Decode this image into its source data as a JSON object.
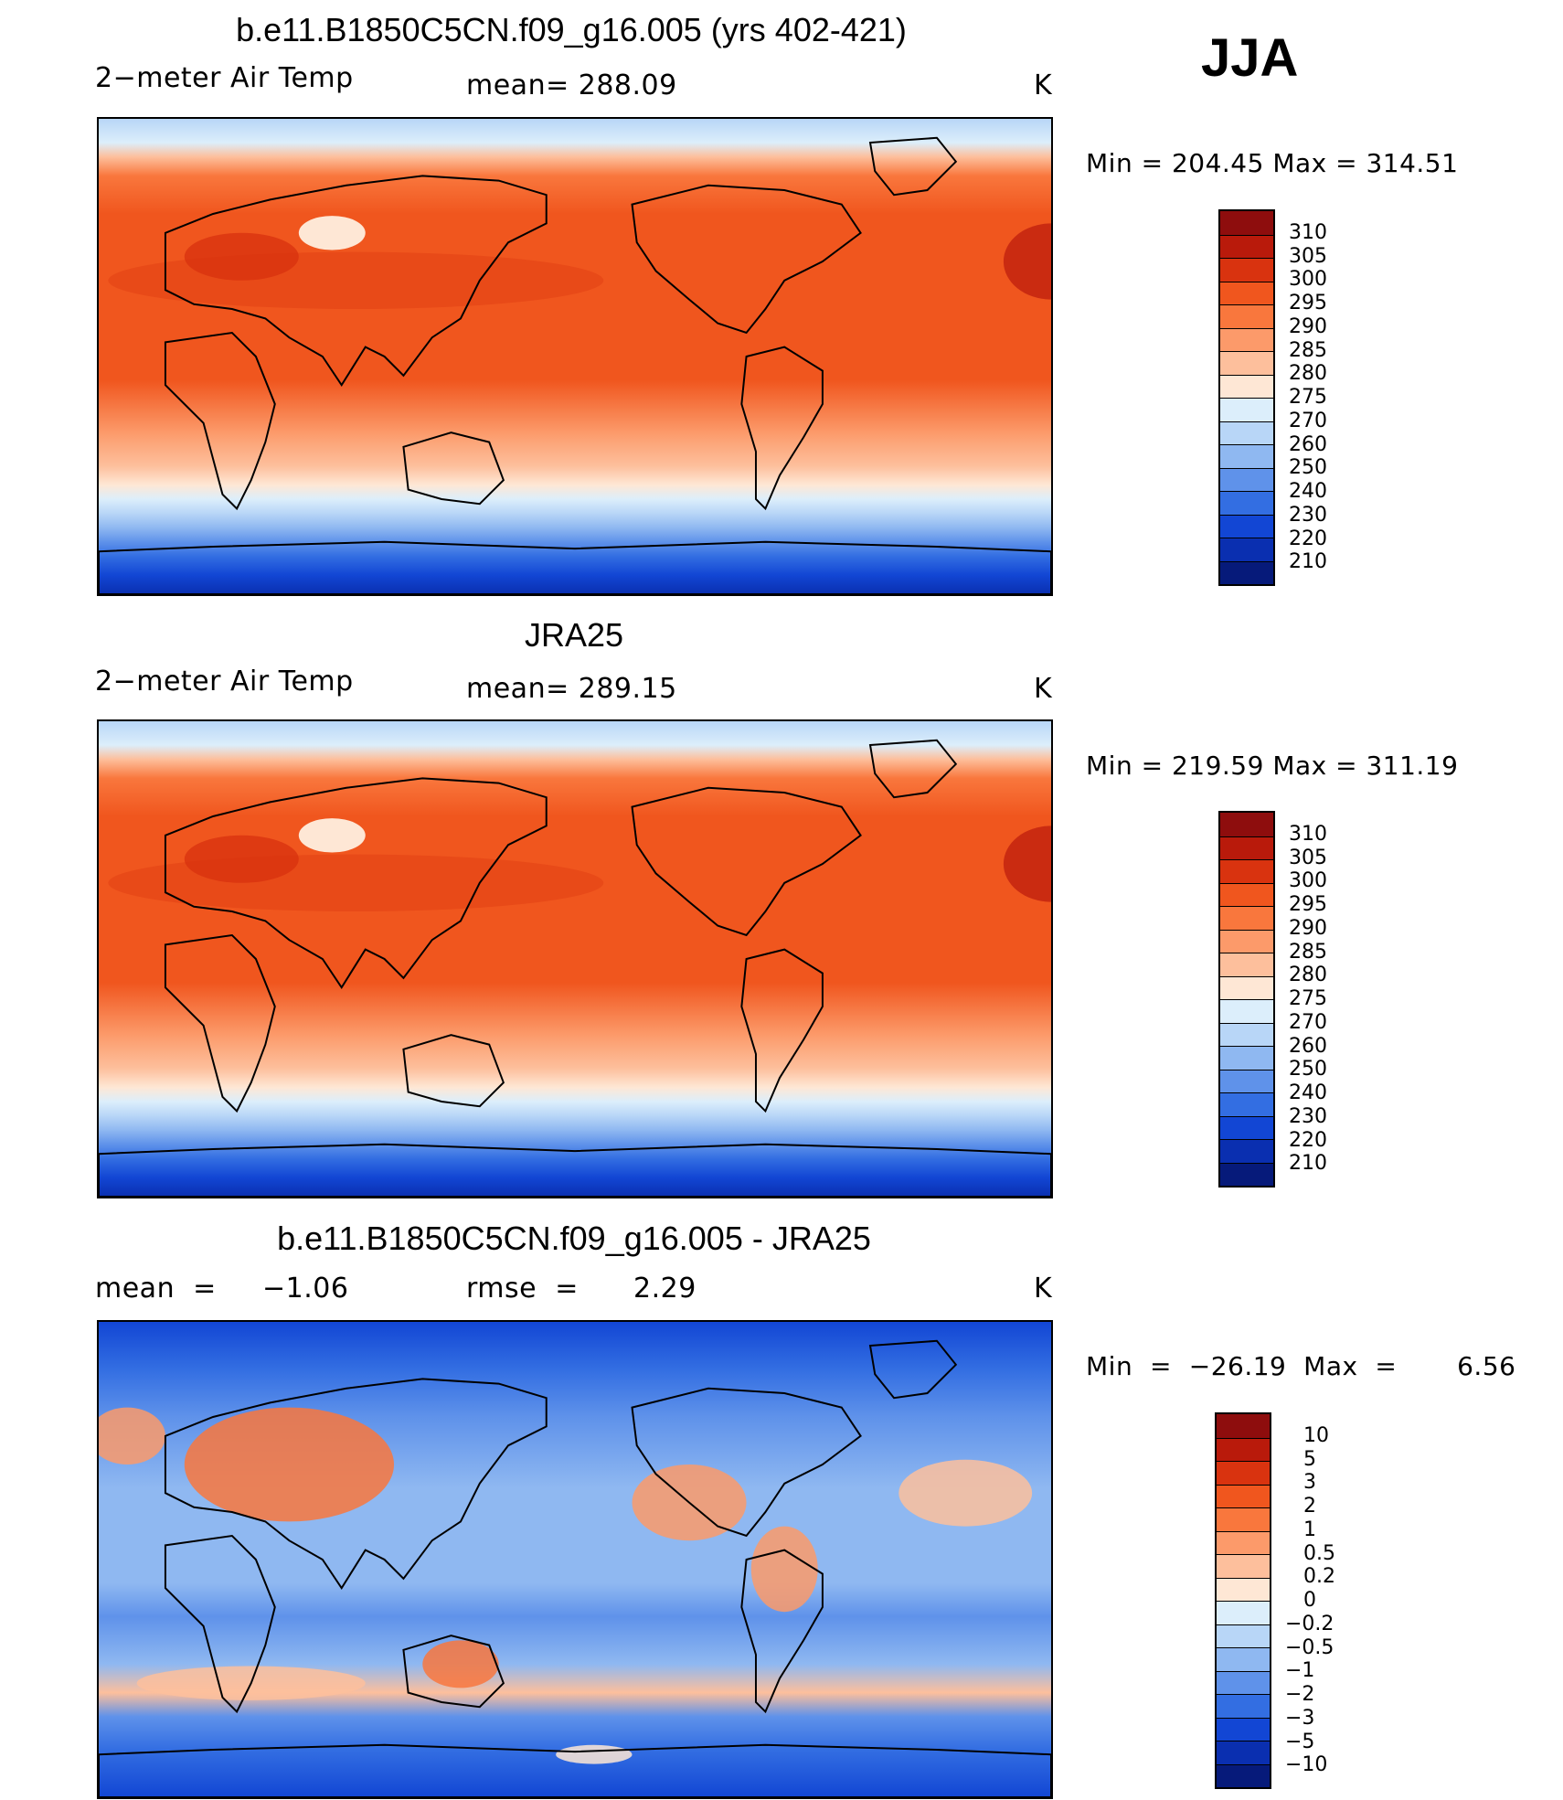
{
  "season": "JJA",
  "panels": [
    {
      "title": "b.e11.B1850C5CN.f09_g16.005 (yrs 402-421)",
      "left_label": "2−meter Air Temp",
      "center_label": "mean=  288.09",
      "units": "K",
      "minmax": "Min  =  204.45  Max  =  314.51",
      "kind": "absolute"
    },
    {
      "title": "JRA25",
      "left_label": "2−meter Air Temp",
      "center_label": "mean=  289.15",
      "units": "K",
      "minmax": "Min  =  219.59  Max  =  311.19",
      "kind": "absolute"
    },
    {
      "title": "b.e11.B1850C5CN.f09_g16.005 - JRA25",
      "left_label": "mean  =     −1.06",
      "center_label": "rmse  =      2.29",
      "units": "K",
      "minmax": "Min  =  −26.19  Max  =       6.56",
      "kind": "difference"
    }
  ],
  "colorbars": {
    "absolute": {
      "labels": [
        "310",
        "305",
        "300",
        "295",
        "290",
        "285",
        "280",
        "275",
        "270",
        "260",
        "250",
        "240",
        "230",
        "220",
        "210"
      ],
      "colors": [
        "#8e0d0d",
        "#b91a0b",
        "#d9330f",
        "#f0561e",
        "#f9773d",
        "#fc9a6a",
        "#fdbf9c",
        "#fee7d5",
        "#dceefb",
        "#b8d6f7",
        "#8fb8f1",
        "#5f92ea",
        "#336ee2",
        "#1246d4",
        "#0a2fb0",
        "#061a7a"
      ]
    },
    "difference": {
      "labels": [
        "10",
        "5",
        "3",
        "2",
        "1",
        "0.5",
        "0.2",
        "0",
        "−0.2",
        "−0.5",
        "−1",
        "−2",
        "−3",
        "−5",
        "−10"
      ],
      "colors": [
        "#8e0d0d",
        "#b91a0b",
        "#d9330f",
        "#f0561e",
        "#f9773d",
        "#fc9a6a",
        "#fdbf9c",
        "#fee7d5",
        "#dceefb",
        "#b8d6f7",
        "#8fb8f1",
        "#5f92ea",
        "#336ee2",
        "#1246d4",
        "#0a2fb0",
        "#061a7a"
      ]
    }
  }
}
